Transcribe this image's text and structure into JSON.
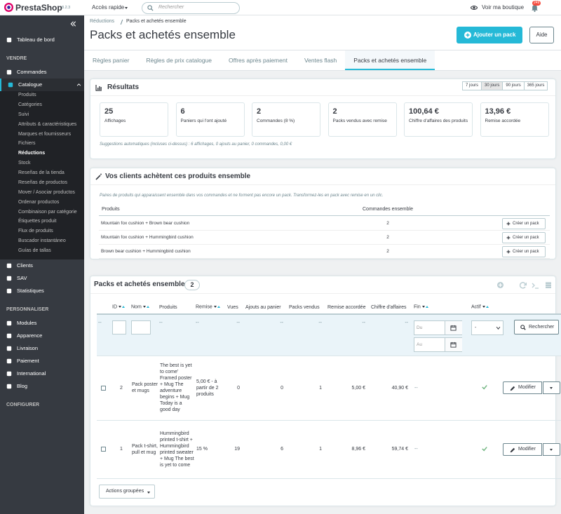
{
  "header": {
    "logo": "PrestaShop",
    "version": "8.2.3",
    "quick_access": "Accès rapide",
    "search_placeholder": "Rechercher",
    "view_shop": "Voir ma boutique",
    "notifications": "249"
  },
  "sidebar": {
    "dashboard": "Tableau de bord",
    "sections": [
      {
        "title": "VENDRE",
        "items": [
          {
            "label": "Commandes"
          },
          {
            "label": "Catalogue",
            "open": true,
            "submenu": [
              {
                "label": "Produits"
              },
              {
                "label": "Catégories"
              },
              {
                "label": "Suivi"
              },
              {
                "label": "Attributs & caractéristiques"
              },
              {
                "label": "Marques et fournisseurs"
              },
              {
                "label": "Fichiers"
              },
              {
                "label": "Réductions",
                "active": true
              },
              {
                "label": "Stock"
              },
              {
                "label": "Reseñas de la tienda"
              },
              {
                "label": "Reseñas de productos"
              },
              {
                "label": "Mover / Asociar productos"
              },
              {
                "label": "Ordenar productos"
              },
              {
                "label": "Combinaison par catégorie"
              },
              {
                "label": "Étiquettes produit"
              },
              {
                "label": "Flux de produits"
              },
              {
                "label": "Buscador instantáneo"
              },
              {
                "label": "Guías de tallas"
              }
            ]
          },
          {
            "label": "Clients"
          },
          {
            "label": "SAV"
          },
          {
            "label": "Statistiques"
          }
        ]
      },
      {
        "title": "PERSONNALISER",
        "items": [
          {
            "label": "Modules"
          },
          {
            "label": "Apparence"
          },
          {
            "label": "Livraison"
          },
          {
            "label": "Paiement"
          },
          {
            "label": "International"
          },
          {
            "label": "Blog"
          }
        ]
      },
      {
        "title": "CONFIGURER",
        "items": []
      }
    ]
  },
  "breadcrumb": [
    "Réductions",
    "Packs et achetés ensemble"
  ],
  "page_title": "Packs et achetés ensemble",
  "toolbar": {
    "add": "Ajouter un pack",
    "help": "Aide"
  },
  "tabs": [
    {
      "label": "Règles panier"
    },
    {
      "label": "Règles de prix catalogue"
    },
    {
      "label": "Offres après paiement"
    },
    {
      "label": "Ventes flash"
    },
    {
      "label": "Packs et achetés ensemble",
      "active": true
    }
  ],
  "results": {
    "title": "Résultats",
    "periods": [
      {
        "label": "7 jours"
      },
      {
        "label": "30 jours",
        "active": true
      },
      {
        "label": "90 jours"
      },
      {
        "label": "365 jours"
      }
    ],
    "kpis": [
      {
        "value": "25",
        "label": "Affichages"
      },
      {
        "value": "6",
        "label": "Paniers qui l'ont ajouté"
      },
      {
        "value": "2",
        "label": "Commandes (8 %)"
      },
      {
        "value": "2",
        "label": "Packs vendus avec remise"
      },
      {
        "value": "100,64 €",
        "label": "Chiffre d'affaires des produits"
      },
      {
        "value": "13,96 €",
        "label": "Remise accordée"
      }
    ],
    "note": "Suggestions automatiques (incluses ci-dessus) : 6 affichages, 0 ajouts au panier, 0 commandes, 0,00 €"
  },
  "bought_together": {
    "title": "Vos clients achètent ces produits ensemble",
    "description": "Paires de produits qui apparaissent ensemble dans vos commandes et ne forment pas encore un pack. Transformez-les en pack avec remise en un clic.",
    "columns": [
      "Produits",
      "Commandes ensemble"
    ],
    "rows": [
      {
        "products": "Mountain fox cushion + Brown bear cushion",
        "orders": "2",
        "action": "Créer un pack"
      },
      {
        "products": "Mountain fox cushion + Hummingbird cushion",
        "orders": "2",
        "action": "Créer un pack"
      },
      {
        "products": "Brown bear cushion + Hummingbird cushion",
        "orders": "2",
        "action": "Créer un pack"
      }
    ]
  },
  "packs": {
    "title": "Packs et achetés ensemble",
    "count": "2",
    "columns": [
      {
        "label": "ID",
        "sortable": true
      },
      {
        "label": "Nom",
        "sortable": true
      },
      {
        "label": "Produits"
      },
      {
        "label": "Remise",
        "sortable": true
      },
      {
        "label": "Vues"
      },
      {
        "label": "Ajouts au panier"
      },
      {
        "label": "Packs vendus"
      },
      {
        "label": "Remise accordée"
      },
      {
        "label": "Chiffre d'affaires"
      },
      {
        "label": "Fin",
        "sortable": true
      },
      {
        "label": "Actif",
        "sortable": true
      }
    ],
    "filters": {
      "checkbox": "--",
      "products": "--",
      "discount": "--",
      "views": "--",
      "cart_adds": "--",
      "sold": "--",
      "discount_given": "--",
      "revenue": "--",
      "date_from": "Du",
      "date_to": "Au",
      "active": "-",
      "search": "Rechercher"
    },
    "rows": [
      {
        "id": "2",
        "name": "Pack poster et mugs",
        "products": "The best is yet to come' Framed poster + Mug The adventure begins + Mug Today is a good day",
        "discount": "5,00 € - à partir de 2 produits",
        "views": "0",
        "cart_adds": "0",
        "sold": "1",
        "discount_given": "5,00 €",
        "revenue": "40,90 €",
        "end": "--",
        "active": true,
        "action": "Modifier"
      },
      {
        "id": "1",
        "name": "Pack t-shirt, pull et mug",
        "products": "Hummingbird printed t-shirt + Hummingbird printed sweater + Mug The best is yet to come",
        "discount": "15 %",
        "views": "19",
        "cart_adds": "6",
        "sold": "1",
        "discount_given": "8,96 €",
        "revenue": "59,74 €",
        "end": "--",
        "active": true,
        "action": "Modifier"
      }
    ],
    "bulk_actions": "Actions groupées"
  }
}
